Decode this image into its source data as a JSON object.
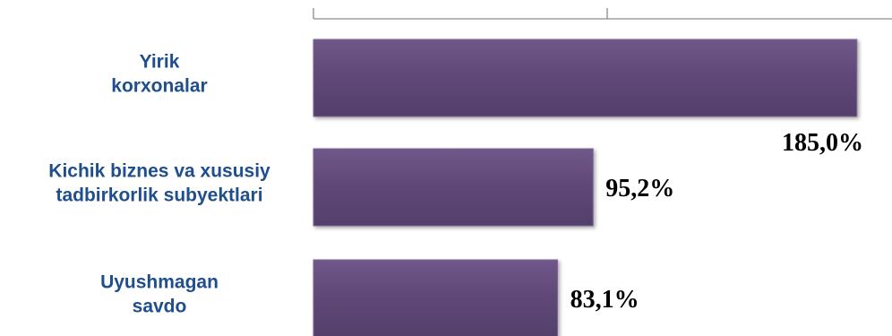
{
  "chart_data": {
    "type": "bar",
    "orientation": "horizontal",
    "categories": [
      [
        "Yirik",
        "korxonalar"
      ],
      [
        "Kichik biznes va xususiy",
        "tadbirkorlik subyektlari"
      ],
      [
        "Uyushmagan",
        "savdo"
      ]
    ],
    "values": [
      185.0,
      95.2,
      83.1
    ],
    "value_labels": [
      "185,0%",
      "95,2%",
      "83,1%"
    ],
    "xlim": [
      0,
      200
    ],
    "grid": false,
    "bar_color": "#5f4777",
    "bar_highlight_color": "#7e6898",
    "label_color": "#1f4e8c"
  }
}
